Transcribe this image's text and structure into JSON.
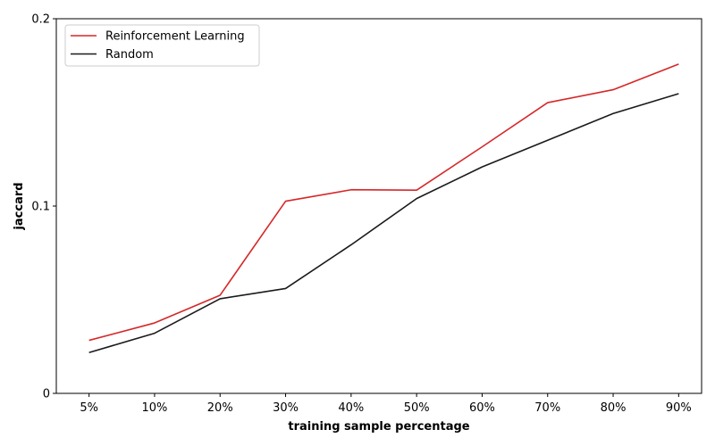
{
  "chart_data": {
    "type": "line",
    "xlabel": "training sample percentage",
    "ylabel": "jaccard",
    "categories": [
      "5%",
      "10%",
      "20%",
      "30%",
      "40%",
      "50%",
      "60%",
      "70%",
      "80%",
      "90%"
    ],
    "ylim": [
      0,
      0.2
    ],
    "yticks": [
      0,
      0.1,
      0.2
    ],
    "ytick_labels": [
      "0",
      "0.1",
      "0.2"
    ],
    "grid": false,
    "legend_position": "top-left",
    "series": [
      {
        "name": "Reinforcement Learning",
        "color": "#d62728",
        "values": [
          0.0283,
          0.0376,
          0.0524,
          0.1026,
          0.1087,
          0.1085,
          0.1316,
          0.1552,
          0.1621,
          0.1758
        ]
      },
      {
        "name": "Random",
        "color": "#1a1a1a",
        "values": [
          0.0218,
          0.0321,
          0.0505,
          0.056,
          0.0793,
          0.104,
          0.1209,
          0.1351,
          0.1494,
          0.16
        ]
      }
    ]
  }
}
